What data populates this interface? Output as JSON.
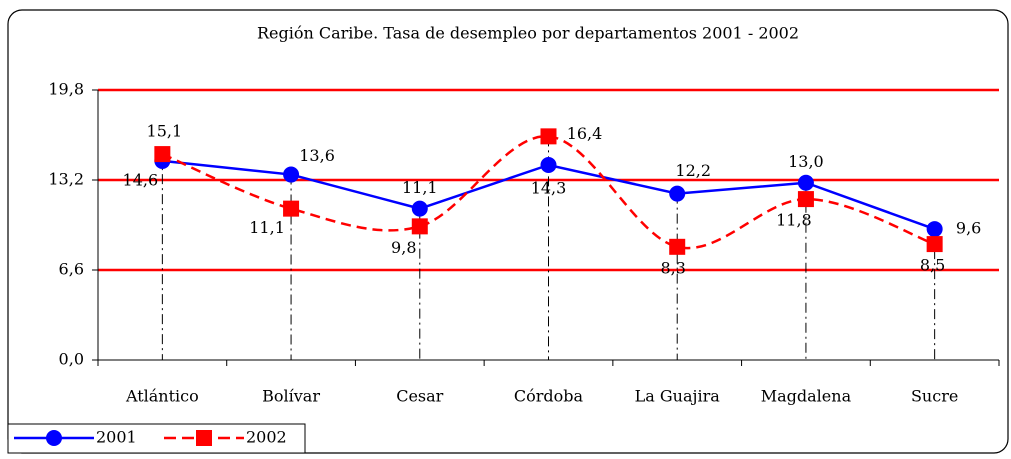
{
  "chart_data": {
    "type": "line",
    "title": "Región Caribe. Tasa de desempleo por departamentos 2001 - 2002",
    "categories": [
      "Atlántico",
      "Bolívar",
      "Cesar",
      "Córdoba",
      "La Guajira",
      "Magdalena",
      "Sucre"
    ],
    "series": [
      {
        "name": "2001",
        "color": "#0000ff",
        "dash": false,
        "smooth": false,
        "marker": "circle",
        "values": [
          14.6,
          13.6,
          11.1,
          14.3,
          12.2,
          13.0,
          9.6
        ],
        "value_labels": [
          "14,6",
          "13,6",
          "11,1",
          "14,3",
          "12,2",
          "13,0",
          "9,6"
        ]
      },
      {
        "name": "2002",
        "color": "#ff0000",
        "dash": true,
        "smooth": true,
        "marker": "square",
        "values": [
          15.1,
          11.1,
          9.8,
          16.4,
          8.3,
          11.8,
          8.5
        ],
        "value_labels": [
          "15,1",
          "11,1",
          "9,8",
          "16,4",
          "8,3",
          "11,8",
          "8,5"
        ]
      }
    ],
    "ylim": [
      0,
      19.8
    ],
    "yticks": [
      {
        "value": 0,
        "label": "0,0"
      },
      {
        "value": 6.6,
        "label": "6,6"
      },
      {
        "value": 13.2,
        "label": "13,2"
      },
      {
        "value": 19.8,
        "label": "19,8"
      }
    ],
    "grid": true,
    "grid_color": "#ff0000",
    "legend": "bottom-left"
  }
}
